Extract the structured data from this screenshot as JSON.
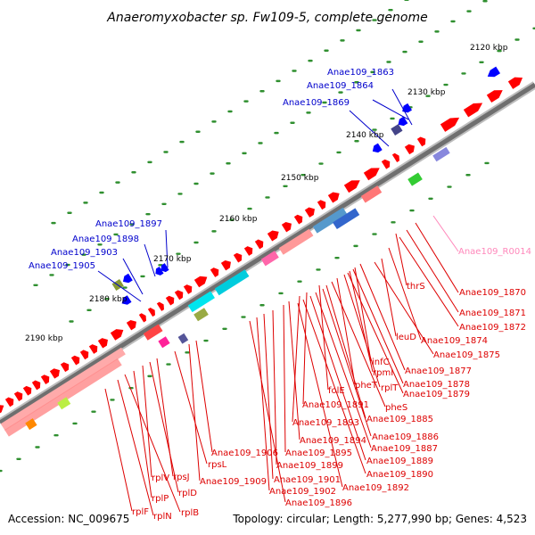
{
  "title": "Anaeromyxobacter sp. Fw109-5, complete genome",
  "footer": {
    "accession": "Accession: NC_009675",
    "stats": "Topology: circular; Length: 5,277,990 bp; Genes: 4,523"
  },
  "colors": {
    "backbone": "#7a7a7a",
    "forward_gene": "#ff0000",
    "reverse_gene": "#0000ff",
    "tick": "#2f8f2f",
    "red_label": "#dd0000",
    "blue_label": "#0000cc",
    "pink_label": "#ff88bb"
  },
  "scale_ticks": [
    {
      "label": "2120 kbp"
    },
    {
      "label": "2130 kbp"
    },
    {
      "label": "2140 kbp"
    },
    {
      "label": "2150 kbp"
    },
    {
      "label": "2160 kbp"
    },
    {
      "label": "2170 kbp"
    },
    {
      "label": "2180 kbp"
    },
    {
      "label": "2190 kbp"
    }
  ],
  "labels_blue": [
    {
      "text": "Anae109_1863"
    },
    {
      "text": "Anae109_1864"
    },
    {
      "text": "Anae109_1869"
    },
    {
      "text": "Anae109_1897"
    },
    {
      "text": "Anae109_1898"
    },
    {
      "text": "Anae109_1903"
    },
    {
      "text": "Anae109_1905"
    }
  ],
  "labels_pink": [
    {
      "text": "Anae109_R0014"
    }
  ],
  "labels_red": [
    {
      "text": "thrS"
    },
    {
      "text": "Anae109_1870"
    },
    {
      "text": "Anae109_1871"
    },
    {
      "text": "Anae109_1872"
    },
    {
      "text": "leuD"
    },
    {
      "text": "Anae109_1874"
    },
    {
      "text": "Anae109_1875"
    },
    {
      "text": "infC"
    },
    {
      "text": "rpmI"
    },
    {
      "text": "Anae109_1877"
    },
    {
      "text": "rplT"
    },
    {
      "text": "pheT"
    },
    {
      "text": "Anae109_1878"
    },
    {
      "text": "Anae109_1879"
    },
    {
      "text": "folE"
    },
    {
      "text": "pheS"
    },
    {
      "text": "Anae109_1891"
    },
    {
      "text": "Anae109_1885"
    },
    {
      "text": "Anae109_1893"
    },
    {
      "text": "Anae109_1886"
    },
    {
      "text": "Anae109_1894"
    },
    {
      "text": "Anae109_1887"
    },
    {
      "text": "Anae109_1906"
    },
    {
      "text": "Anae109_1895"
    },
    {
      "text": "Anae109_1889"
    },
    {
      "text": "rpsL"
    },
    {
      "text": "Anae109_1899"
    },
    {
      "text": "Anae109_1890"
    },
    {
      "text": "rpsJ"
    },
    {
      "text": "rplV"
    },
    {
      "text": "Anae109_1909"
    },
    {
      "text": "Anae109_1901"
    },
    {
      "text": "rplD"
    },
    {
      "text": "Anae109_1892"
    },
    {
      "text": "Anae109_1902"
    },
    {
      "text": "rplP"
    },
    {
      "text": "Anae109_1896"
    },
    {
      "text": "rplF"
    },
    {
      "text": "rplB"
    },
    {
      "text": "rplN"
    }
  ]
}
